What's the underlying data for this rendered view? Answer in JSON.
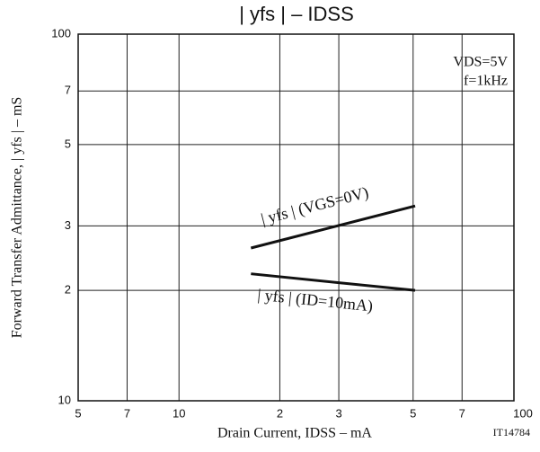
{
  "chart_data": {
    "type": "line",
    "title": "| yfs | – IDSS",
    "x_label": "Drain Current, IDSS – mA",
    "y_label": "Forward Transfer Admittance, | yfs | – mS",
    "annotations": [
      "VDS=5V",
      "f=1kHz"
    ],
    "figure_id": "IT14784",
    "xscale": "log",
    "yscale": "log",
    "grid": true,
    "xlim": [
      5,
      100
    ],
    "xticks": [
      5,
      7,
      10,
      {
        "value": 20,
        "label": "2"
      },
      {
        "value": 30,
        "label": "3"
      },
      {
        "value": 50,
        "label": "5"
      },
      {
        "value": 70,
        "label": "7"
      },
      100
    ],
    "ylim": [
      10,
      100
    ],
    "yticks": [
      10,
      {
        "value": 20,
        "label": "2"
      },
      {
        "value": 30,
        "label": "3"
      },
      {
        "value": 50,
        "label": "5"
      },
      {
        "value": 70,
        "label": "7"
      },
      100
    ],
    "series": [
      {
        "name": "| yfs | (VGS=0V)",
        "color": "#111111",
        "x": [
          16.4,
          50.7
        ],
        "values": [
          26.1,
          34.0
        ]
      },
      {
        "name": "| yfs | (ID=10mA)",
        "color": "#111111",
        "x": [
          16.4,
          50.7
        ],
        "values": [
          22.2,
          20.0
        ]
      }
    ]
  }
}
